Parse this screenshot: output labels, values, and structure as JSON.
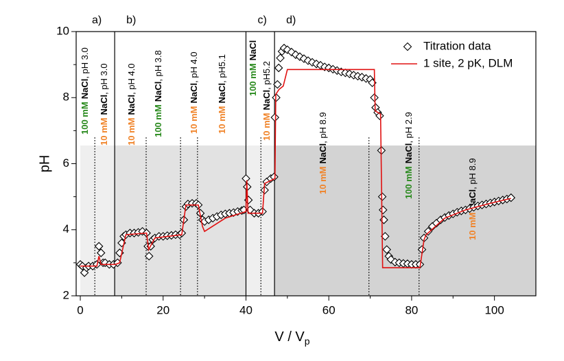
{
  "chart_data": {
    "type": "scatter-line",
    "xlabel": {
      "main": "V / V",
      "sub": "p"
    },
    "ylabel": "pH",
    "xlim": [
      -1,
      110
    ],
    "ylim": [
      2,
      10
    ],
    "xticks": [
      0,
      20,
      40,
      60,
      80,
      100
    ],
    "yticks": [
      2,
      4,
      6,
      8,
      10
    ],
    "shade_top": 6.55,
    "regions": [
      {
        "label": "a)",
        "x": [
          0,
          8.3
        ],
        "color": "#efefef"
      },
      {
        "label": "b)",
        "x": [
          8.3,
          40
        ],
        "color": "#e2e2e2"
      },
      {
        "label": "c)",
        "x": [
          40,
          46.9
        ],
        "color": "#efefef"
      },
      {
        "label": "d)",
        "x": [
          46.9,
          110
        ],
        "color": "#d3d3d3"
      }
    ],
    "dividers": [
      3.5,
      15.9,
      24.2,
      28.3,
      43.6,
      69.7,
      81.8
    ],
    "conc_colors": {
      "100 mM": "#2a8a1e",
      "10 mM": "#f0842a"
    },
    "annotations": [
      {
        "conc": "100 mM",
        "salt": "NaCl",
        "ph": ", pH 3.0"
      },
      {
        "conc": "10 mM",
        "salt": "NaCl",
        "ph": ", pH 3.0"
      },
      {
        "conc": "10 mM",
        "salt": "NaCl",
        "ph": ", pH 4.0"
      },
      {
        "conc": "100 mM",
        "salt": "NaCl",
        "ph": ", pH 3.8"
      },
      {
        "conc": "10 mM",
        "salt": "NaCl",
        "ph": ", pH 4.0"
      },
      {
        "conc": "10 mM",
        "salt": "NaCl",
        "ph": ", pH5.1"
      },
      {
        "conc": "100 mM",
        "salt": "NaCl"
      },
      {
        "conc": "10 mM",
        "salt": "NaCl",
        "ph": ", pH5.2"
      },
      {
        "conc": "10 mM",
        "salt": "NaCl",
        "ph": ", pH 8.9"
      },
      {
        "conc": "100 mM",
        "salt": "NaCl",
        "ph": ", pH 2.9"
      },
      {
        "conc": "10 mM",
        "salt": "NaCl",
        "ph": ", pH 8.9"
      }
    ],
    "series": [
      {
        "name": "Titration data",
        "color": "#000000",
        "marker": "diamond",
        "x": [
          0,
          0.5,
          1,
          1.5,
          2,
          3,
          4,
          4.5,
          5,
          5.5,
          6,
          7,
          8,
          9,
          9.5,
          10,
          10.5,
          11,
          12,
          13,
          14,
          15,
          16,
          16.3,
          16.6,
          17,
          17.5,
          18,
          19,
          20,
          21,
          22,
          23,
          24,
          24.5,
          25,
          25.5,
          26,
          27,
          28,
          28.5,
          29,
          29.5,
          30,
          31,
          32,
          33,
          34,
          35,
          36,
          37,
          38,
          39,
          39.5,
          40,
          40.3,
          40.6,
          41,
          42,
          43,
          44,
          44.5,
          45,
          46,
          46.8,
          47,
          47.3,
          47.6,
          47.9,
          48.3,
          48.7,
          49.2,
          50,
          51,
          52,
          53,
          54,
          55,
          56,
          57,
          58,
          59,
          60,
          61,
          62,
          63,
          64,
          65,
          66,
          67,
          68,
          69,
          70,
          70.5,
          71,
          71.3,
          71.8,
          72.3,
          72.7,
          72.9,
          73.1,
          73.3,
          73.6,
          74,
          74.5,
          75,
          76,
          77,
          78,
          79,
          80,
          81,
          82,
          82.5,
          83,
          84,
          85,
          86,
          87,
          88,
          89,
          90,
          91,
          92,
          93,
          94,
          95,
          96,
          97,
          98,
          99,
          100,
          101,
          102,
          103,
          104
        ],
        "y": [
          2.95,
          2.9,
          2.7,
          2.85,
          2.9,
          2.9,
          2.95,
          3.5,
          3.3,
          3.0,
          3.0,
          2.95,
          2.95,
          3.0,
          3.3,
          3.6,
          3.8,
          3.85,
          3.9,
          3.9,
          3.92,
          3.95,
          3.9,
          3.5,
          3.2,
          3.5,
          3.7,
          3.75,
          3.8,
          3.8,
          3.82,
          3.83,
          3.85,
          3.85,
          3.9,
          4.3,
          4.7,
          4.78,
          4.8,
          4.8,
          4.75,
          4.5,
          4.3,
          4.25,
          4.3,
          4.35,
          4.4,
          4.45,
          4.48,
          4.5,
          4.52,
          4.55,
          4.58,
          4.6,
          5.55,
          5.3,
          4.9,
          4.6,
          4.5,
          4.5,
          4.55,
          5.2,
          5.45,
          5.55,
          5.6,
          7.4,
          8.0,
          8.4,
          8.9,
          9.2,
          9.4,
          9.5,
          9.45,
          9.38,
          9.3,
          9.24,
          9.18,
          9.12,
          9.07,
          9.02,
          8.98,
          8.93,
          8.9,
          8.86,
          8.82,
          8.78,
          8.75,
          8.72,
          8.68,
          8.65,
          8.62,
          8.58,
          8.55,
          8.45,
          8.0,
          7.7,
          7.55,
          7.45,
          6.4,
          5.0,
          4.6,
          4.3,
          3.8,
          3.4,
          3.2,
          3.1,
          3.02,
          3.0,
          2.98,
          2.97,
          2.95,
          2.95,
          2.95,
          3.4,
          3.75,
          3.95,
          4.1,
          4.2,
          4.3,
          4.37,
          4.43,
          4.48,
          4.53,
          4.57,
          4.6,
          4.64,
          4.68,
          4.72,
          4.75,
          4.78,
          4.81,
          4.84,
          4.87,
          4.9,
          4.93,
          4.97
        ]
      },
      {
        "name": "1 site, 2 pK, DLM",
        "color": "#e01010",
        "marker": "line",
        "x": [
          0,
          4,
          4.5,
          5,
          8.5,
          9.5,
          11,
          16,
          16.5,
          18,
          24.5,
          25.5,
          28.5,
          29.5,
          30,
          35,
          40,
          40.2,
          40.5,
          44,
          44.5,
          47,
          47.2,
          48,
          49,
          50,
          71,
          71.2,
          72.5,
          73,
          82,
          83,
          83.5,
          88,
          93,
          99,
          104
        ],
        "y": [
          2.9,
          2.9,
          3.2,
          2.95,
          2.95,
          3.0,
          3.85,
          3.9,
          3.4,
          3.75,
          3.85,
          4.75,
          4.75,
          4.1,
          3.95,
          4.35,
          4.55,
          5.5,
          4.5,
          4.5,
          5.4,
          5.55,
          8.1,
          8.25,
          8.35,
          8.85,
          8.85,
          7.6,
          7.5,
          2.85,
          2.85,
          3.7,
          3.85,
          4.35,
          4.6,
          4.8,
          4.95
        ]
      }
    ]
  }
}
